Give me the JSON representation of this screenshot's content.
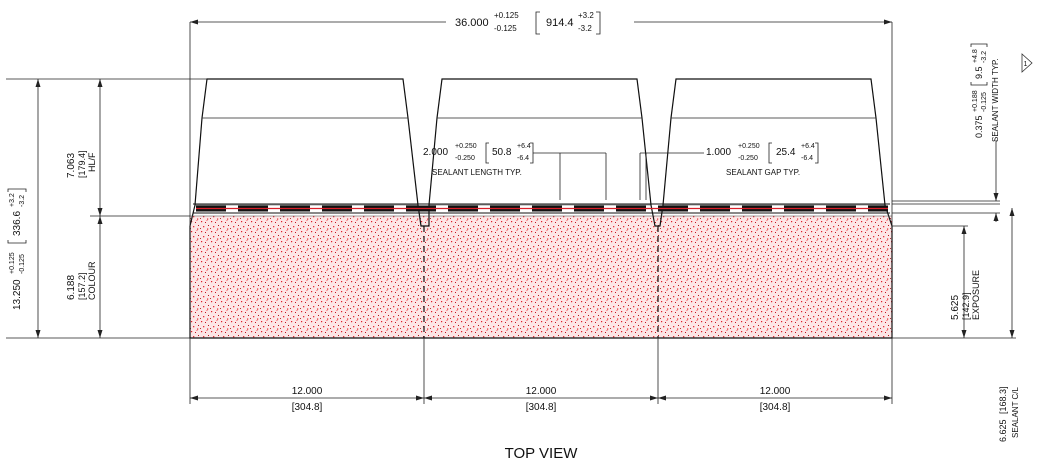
{
  "drawing": {
    "view_title": "TOP VIEW",
    "overall_width": {
      "nominal": "36.000",
      "tol_plus": "+0.125",
      "tol_minus": "-0.125",
      "metric": "914.4",
      "metric_plus": "+3.2",
      "metric_minus": "-3.2"
    },
    "overall_height": {
      "nominal": "13.250",
      "tol_plus": "+0.125",
      "tol_minus": "-0.125",
      "metric": "336.6",
      "metric_plus": "+3.2",
      "metric_minus": "-3.2"
    },
    "hl_dim": {
      "value": "7.063",
      "metric": "[179.4]",
      "label": "HL/F"
    },
    "colour_dim": {
      "value": "6.188",
      "metric": "[157.2]",
      "label": "COLOUR"
    },
    "exposure_dim": {
      "value": "5.625",
      "metric": "[142.9]",
      "label": "EXPOSURE"
    },
    "sealant_cl": {
      "value": "6.625",
      "metric": "[168.3]",
      "label": "SEALANT C/L"
    },
    "sealant_width": {
      "value": "0.375",
      "tol_plus": "+0.188",
      "tol_minus": "-0.125",
      "metric": "9.5",
      "metric_plus": "+4.8",
      "metric_minus": "-3.2",
      "label": "SEALANT WIDTH TYP."
    },
    "sealant_length": {
      "value": "2.000",
      "tol_plus": "+0.250",
      "tol_minus": "-0.250",
      "metric": "50.8",
      "metric_plus": "+6.4",
      "metric_minus": "-6.4",
      "label": "SEALANT LENGTH TYP."
    },
    "sealant_gap": {
      "value": "1.000",
      "tol_plus": "+0.250",
      "tol_minus": "-0.250",
      "metric": "25.4",
      "metric_plus": "+6.4",
      "metric_minus": "-6.4",
      "label": "SEALANT GAP TYP."
    },
    "tab_widths": [
      {
        "value": "12.000",
        "metric": "[304.8]"
      },
      {
        "value": "12.000",
        "metric": "[304.8]"
      },
      {
        "value": "12.000",
        "metric": "[304.8]"
      }
    ],
    "revision_mark": "1",
    "colors": {
      "colour_zone": "#e8323c",
      "headlap": "#9c9c9c",
      "top_band": "#f2a91c",
      "sealant": "#111111",
      "sealant_core": "#d8202a"
    }
  }
}
